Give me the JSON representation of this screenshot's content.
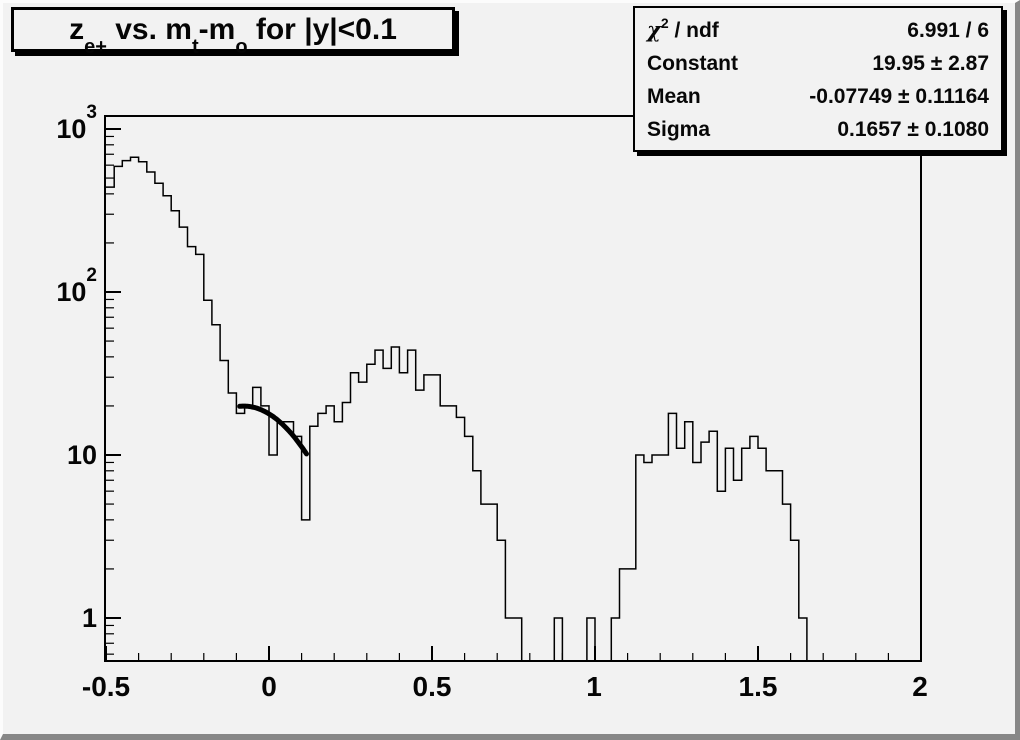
{
  "canvas": {
    "background": "#f2f2f2",
    "bevel_light": "#fcfcfc",
    "bevel_dark": "#878787",
    "line_color": "#000000"
  },
  "title": {
    "parts": [
      {
        "t": "z"
      },
      {
        "sub": "e+"
      },
      {
        "t": " vs. m"
      },
      {
        "sub": "t"
      },
      {
        "t": "-m"
      },
      {
        "sub": "o"
      },
      {
        "t": " for |y|<0.1"
      }
    ],
    "full": "z_e+ vs. m_t-m_o for |y|<0.1"
  },
  "stats": {
    "rows": [
      {
        "label_sym": "χ",
        "label_sup": "2",
        "label_rest": " / ndf",
        "label": "χ² / ndf",
        "value": "6.991 / 6"
      },
      {
        "label": "Constant",
        "value": "19.95 ± 2.87"
      },
      {
        "label": "Mean",
        "value": "-0.07749 ± 0.11164"
      },
      {
        "label": "Sigma",
        "value": "0.1657 ± 0.1080"
      }
    ]
  },
  "chart_data": {
    "type": "bar",
    "subtype": "step-histogram-log-y",
    "title": "z_e+ vs. m_t-m_o for |y|<0.1",
    "xlabel": "",
    "ylabel": "",
    "x_start": -0.5,
    "bin_width": 0.025,
    "counts": [
      440,
      590,
      640,
      670,
      630,
      545,
      465,
      390,
      315,
      250,
      190,
      170,
      89,
      63,
      38,
      24,
      18,
      20,
      26,
      20,
      10,
      16,
      16,
      13,
      4,
      15,
      18,
      20,
      16,
      21,
      32,
      28,
      36,
      44,
      34,
      46,
      32,
      44,
      25,
      31,
      31,
      20,
      20,
      17,
      13,
      8,
      5,
      5,
      3,
      1,
      1,
      0,
      0,
      0,
      0,
      1,
      0,
      0,
      0,
      1,
      0,
      0,
      1,
      2,
      2,
      10,
      9,
      10,
      10,
      18,
      11,
      16,
      9,
      12,
      14,
      6,
      11,
      7,
      11,
      13,
      11,
      8,
      8,
      5,
      3,
      1,
      0,
      0,
      0,
      0,
      0,
      0,
      0,
      0,
      0,
      0,
      0,
      0,
      0,
      0
    ],
    "x_axis": {
      "range": [
        -0.5,
        2
      ],
      "minor_tick_step": 0.1,
      "major_ticks": [
        {
          "value": -0.5,
          "label": "-0.5"
        },
        {
          "value": 0,
          "label": "0"
        },
        {
          "value": 0.5,
          "label": "0.5"
        },
        {
          "value": 1,
          "label": "1"
        },
        {
          "value": 1.5,
          "label": "1.5"
        },
        {
          "value": 2,
          "label": "2"
        }
      ]
    },
    "y_axis": {
      "scale": "log",
      "range": [
        0.545,
        1200
      ],
      "major_ticks": [
        {
          "value": 1,
          "base": "1",
          "exp": ""
        },
        {
          "value": 10,
          "base": "10",
          "exp": ""
        },
        {
          "value": 100,
          "base": "10",
          "exp": "2"
        },
        {
          "value": 1000,
          "base": "10",
          "exp": "3"
        }
      ],
      "log_minor_ticks": true
    },
    "fit": {
      "type": "gaussian",
      "constant": 19.95,
      "mean": -0.07749,
      "sigma": 0.1657,
      "chi2": 6.991,
      "ndf": 6,
      "draw_range": [
        -0.09,
        0.115
      ]
    },
    "grid": false,
    "legend": false
  }
}
